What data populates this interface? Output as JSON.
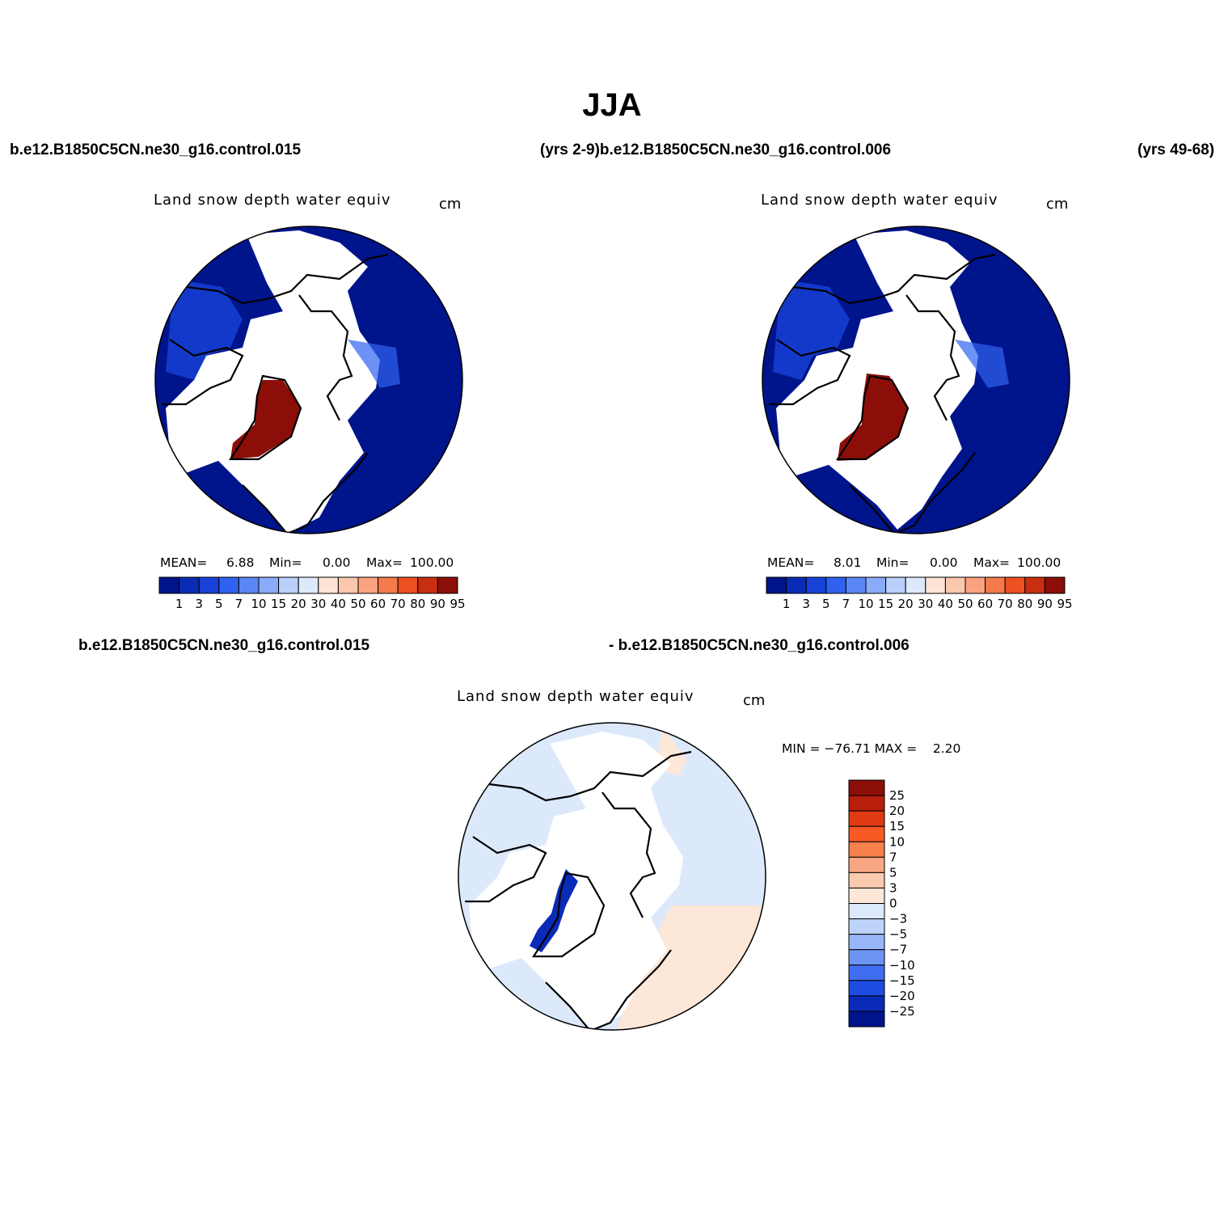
{
  "title": "JJA",
  "headers": {
    "top_left": "b.e12.B1850C5CN.ne30_g16.control.015",
    "top_mid": "(yrs 2-9)b.e12.B1850C5CN.ne30_g16.control.006",
    "top_right": "(yrs 49-68)",
    "bottom_left": "b.e12.B1850C5CN.ne30_g16.control.015",
    "bottom_mid": "- b.e12.B1850C5CN.ne30_g16.control.006"
  },
  "panels": [
    {
      "variable": "Land snow depth water equiv",
      "units": "cm",
      "mean_label": "MEAN=",
      "mean": "6.88",
      "min_label": "Min=",
      "min": "0.00",
      "max_label": "Max=",
      "max": "100.00"
    },
    {
      "variable": "Land snow depth water equiv",
      "units": "cm",
      "mean_label": "MEAN=",
      "mean": "8.01",
      "min_label": "Min=",
      "min": "0.00",
      "max_label": "Max=",
      "max": "100.00"
    }
  ],
  "difference": {
    "variable": "Land snow depth water equiv",
    "units": "cm",
    "minmax": "MIN = −76.71 MAX =    2.20"
  },
  "colorbar_abs": {
    "levels": [
      "1",
      "3",
      "5",
      "7",
      "10",
      "15",
      "20",
      "30",
      "40",
      "50",
      "60",
      "70",
      "80",
      "90",
      "95"
    ],
    "colors": [
      "#00148c",
      "#0a2bb4",
      "#1642d8",
      "#2f62f0",
      "#5a87f5",
      "#8aabf7",
      "#b9cff9",
      "#dde9fb",
      "#fde4d6",
      "#fbc8ad",
      "#f9a27f",
      "#f57b4d",
      "#ed5021",
      "#c82e10",
      "#8c0e08"
    ]
  },
  "colorbar_diff": {
    "levels": [
      "25",
      "20",
      "15",
      "10",
      "7",
      "5",
      "3",
      "0",
      "−3",
      "−5",
      "−7",
      "−10",
      "−15",
      "−20",
      "−25"
    ],
    "colors": [
      "#8c0e08",
      "#b81e0c",
      "#e03a12",
      "#f85a25",
      "#f8804c",
      "#f9a682",
      "#fbcbb0",
      "#fde7d8",
      "#dce9fb",
      "#bdd3fa",
      "#97b6f8",
      "#6d95f3",
      "#3f6ef0",
      "#1d4de0",
      "#0a2bb8",
      "#00148c"
    ]
  },
  "map_colors": {
    "snow_free": "#ffffff",
    "low_abs": "#00148c",
    "high_abs": "#8c0e08",
    "mid_abs": "#3f6ef0",
    "diff_neg_small": "#dce9fb",
    "diff_pos_small": "#fde7d8",
    "diff_neg_large": "#0a2bb8"
  }
}
